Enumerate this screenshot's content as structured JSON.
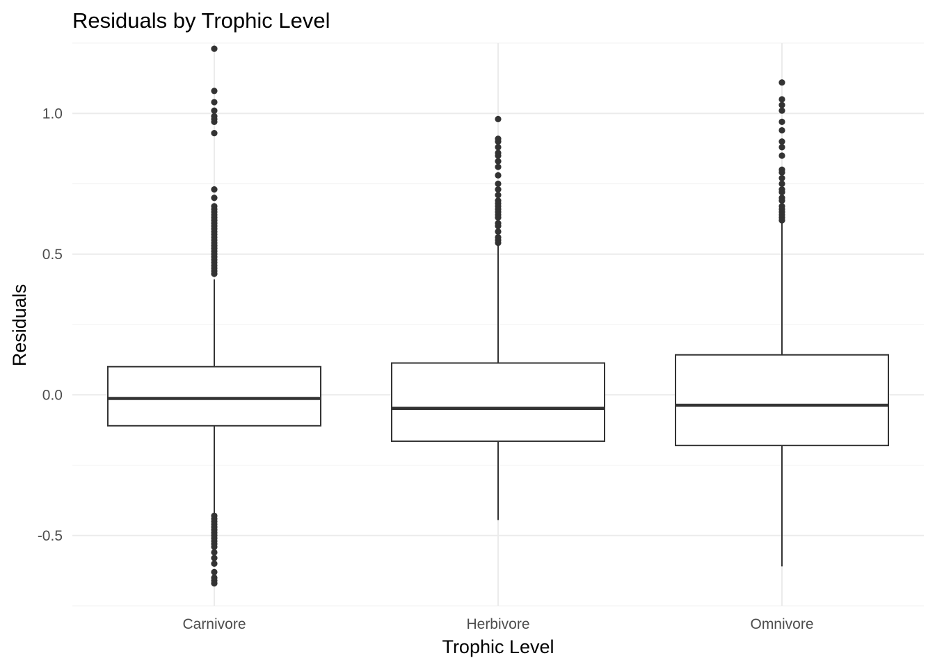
{
  "chart_data": {
    "type": "boxplot",
    "title": "Residuals by Trophic Level",
    "xlabel": "Trophic Level",
    "ylabel": "Residuals",
    "ylim": [
      -0.75,
      1.25
    ],
    "yticks": [
      -0.5,
      0.0,
      0.5,
      1.0
    ],
    "ytick_labels": [
      "-0.5",
      "0.0",
      "0.5",
      "1.0"
    ],
    "grid": true,
    "categories": [
      "Carnivore",
      "Herbivore",
      "Omnivore"
    ],
    "boxes": [
      {
        "category": "Carnivore",
        "q1": -0.11,
        "median": -0.013,
        "q3": 0.1,
        "whisker_low": -0.42,
        "whisker_high": 0.41,
        "outliers": [
          1.23,
          1.08,
          1.04,
          1.01,
          0.99,
          0.98,
          0.97,
          0.93,
          0.73,
          0.7,
          0.67,
          0.66,
          0.65,
          0.64,
          0.63,
          0.62,
          0.61,
          0.6,
          0.59,
          0.58,
          0.57,
          0.56,
          0.55,
          0.54,
          0.53,
          0.52,
          0.51,
          0.5,
          0.49,
          0.48,
          0.47,
          0.46,
          0.45,
          0.44,
          0.43,
          -0.43,
          -0.44,
          -0.45,
          -0.46,
          -0.47,
          -0.48,
          -0.49,
          -0.5,
          -0.51,
          -0.52,
          -0.53,
          -0.54,
          -0.56,
          -0.58,
          -0.6,
          -0.63,
          -0.65,
          -0.66,
          -0.67
        ]
      },
      {
        "category": "Herbivore",
        "q1": -0.165,
        "median": -0.048,
        "q3": 0.113,
        "whisker_low": -0.445,
        "whisker_high": 0.53,
        "outliers": [
          0.98,
          0.91,
          0.9,
          0.88,
          0.86,
          0.85,
          0.83,
          0.81,
          0.78,
          0.75,
          0.73,
          0.71,
          0.69,
          0.68,
          0.67,
          0.66,
          0.65,
          0.64,
          0.63,
          0.61,
          0.6,
          0.58,
          0.56,
          0.55,
          0.54
        ]
      },
      {
        "category": "Omnivore",
        "q1": -0.18,
        "median": -0.037,
        "q3": 0.142,
        "whisker_low": -0.61,
        "whisker_high": 0.61,
        "outliers": [
          1.11,
          1.05,
          1.03,
          1.01,
          0.97,
          0.94,
          0.9,
          0.88,
          0.85,
          0.8,
          0.79,
          0.77,
          0.75,
          0.73,
          0.72,
          0.7,
          0.69,
          0.67,
          0.66,
          0.65,
          0.64,
          0.63,
          0.62
        ]
      }
    ]
  }
}
